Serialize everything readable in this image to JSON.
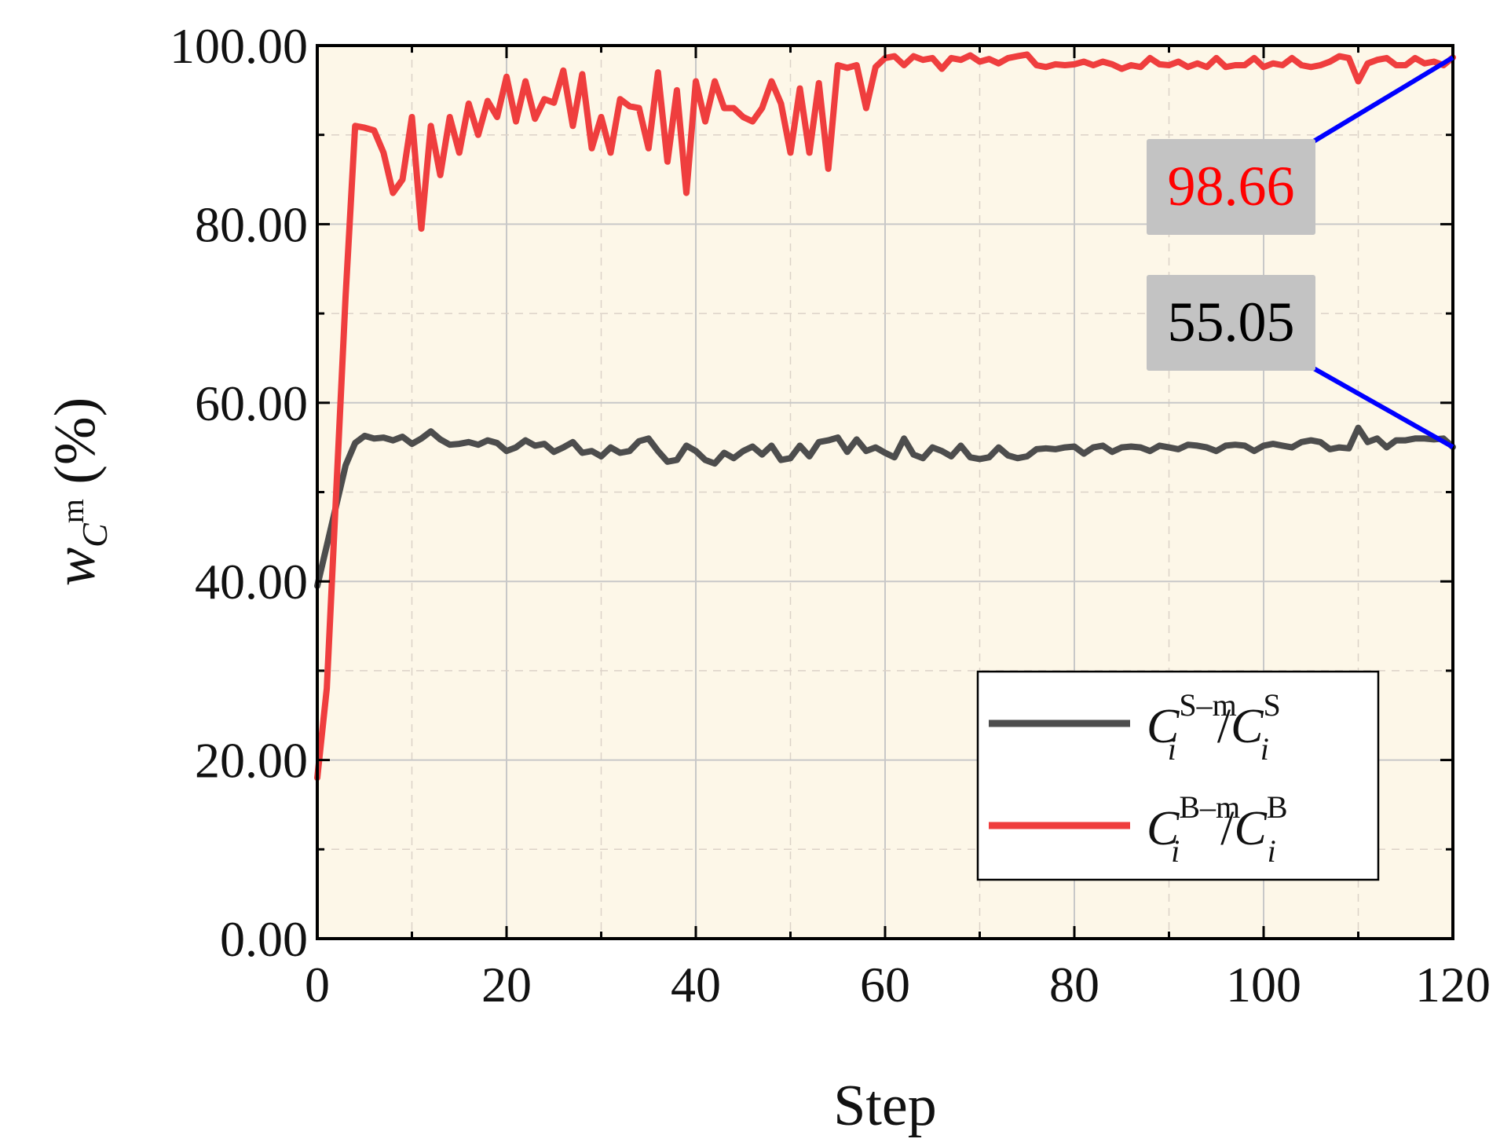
{
  "chart_data": {
    "type": "line",
    "title": "",
    "xlabel": "Step",
    "ylabel": "w_{C^m} (%)",
    "xlim": [
      0,
      120
    ],
    "ylim": [
      0,
      100
    ],
    "x_ticks": [
      "0",
      "20",
      "40",
      "60",
      "80",
      "100",
      "120"
    ],
    "y_ticks": [
      "0.00",
      "20.00",
      "40.00",
      "60.00",
      "80.00",
      "100.00"
    ],
    "grid": true,
    "background": "#fdf7e8",
    "legend_position": "lower-right",
    "series": [
      {
        "name": "C_i^{S_m}/C_i^S",
        "legend": {
          "base": "C",
          "sub": "i",
          "sup": "S_m",
          "slash": "/",
          "base2": "C",
          "sub2": "i",
          "sup2": "S"
        },
        "color": "#4d4d4d",
        "x": [
          0,
          1,
          2,
          3,
          4,
          5,
          6,
          7,
          8,
          9,
          10,
          11,
          12,
          13,
          14,
          15,
          16,
          17,
          18,
          19,
          20,
          21,
          22,
          23,
          24,
          25,
          26,
          27,
          28,
          29,
          30,
          31,
          32,
          33,
          34,
          35,
          36,
          37,
          38,
          39,
          40,
          41,
          42,
          43,
          44,
          45,
          46,
          47,
          48,
          49,
          50,
          51,
          52,
          53,
          54,
          55,
          56,
          57,
          58,
          59,
          60,
          61,
          62,
          63,
          64,
          65,
          66,
          67,
          68,
          69,
          70,
          71,
          72,
          73,
          74,
          75,
          76,
          77,
          78,
          79,
          80,
          81,
          82,
          83,
          84,
          85,
          86,
          87,
          88,
          89,
          90,
          91,
          92,
          93,
          94,
          95,
          96,
          97,
          98,
          99,
          100,
          101,
          102,
          103,
          104,
          105,
          106,
          107,
          108,
          109,
          110,
          111,
          112,
          113,
          114,
          115,
          116,
          117,
          118,
          119,
          120
        ],
        "y": [
          39.5,
          44.0,
          48.5,
          53.0,
          55.5,
          56.3,
          56.0,
          56.1,
          55.8,
          56.2,
          55.4,
          56.0,
          56.8,
          55.9,
          55.3,
          55.4,
          55.6,
          55.3,
          55.8,
          55.5,
          54.6,
          55.0,
          55.8,
          55.2,
          55.4,
          54.5,
          55.0,
          55.6,
          54.4,
          54.6,
          54.0,
          55.0,
          54.4,
          54.6,
          55.7,
          56.0,
          54.6,
          53.4,
          53.6,
          55.2,
          54.6,
          53.6,
          53.2,
          54.4,
          53.8,
          54.6,
          55.1,
          54.2,
          55.2,
          53.6,
          53.8,
          55.2,
          54.0,
          55.6,
          55.8,
          56.1,
          54.5,
          55.9,
          54.6,
          55.0,
          54.4,
          53.9,
          56.0,
          54.2,
          53.8,
          55.0,
          54.6,
          54.0,
          55.2,
          53.9,
          53.7,
          53.9,
          55.0,
          54.1,
          53.8,
          54.0,
          54.8,
          54.9,
          54.8,
          55.0,
          55.1,
          54.3,
          55.0,
          55.2,
          54.5,
          55.0,
          55.1,
          55.0,
          54.6,
          55.2,
          55.0,
          54.8,
          55.3,
          55.2,
          55.0,
          54.6,
          55.2,
          55.3,
          55.2,
          54.6,
          55.2,
          55.4,
          55.2,
          55.0,
          55.6,
          55.8,
          55.6,
          54.8,
          55.0,
          54.9,
          57.2,
          55.6,
          56.0,
          55.0,
          55.8,
          55.8,
          56.0,
          56.0,
          55.9,
          56.0,
          55.05
        ]
      },
      {
        "name": "C_i^{B_m}/C_i^B",
        "legend": {
          "base": "C",
          "sub": "i",
          "sup": "B_m",
          "slash": "/",
          "base2": "C",
          "sub2": "i",
          "sup2": "B"
        },
        "color": "#ef3e3e",
        "x": [
          0,
          1,
          2,
          3,
          4,
          5,
          6,
          7,
          8,
          9,
          10,
          11,
          12,
          13,
          14,
          15,
          16,
          17,
          18,
          19,
          20,
          21,
          22,
          23,
          24,
          25,
          26,
          27,
          28,
          29,
          30,
          31,
          32,
          33,
          34,
          35,
          36,
          37,
          38,
          39,
          40,
          41,
          42,
          43,
          44,
          45,
          46,
          47,
          48,
          49,
          50,
          51,
          52,
          53,
          54,
          55,
          56,
          57,
          58,
          59,
          60,
          61,
          62,
          63,
          64,
          65,
          66,
          67,
          68,
          69,
          70,
          71,
          72,
          73,
          74,
          75,
          76,
          77,
          78,
          79,
          80,
          81,
          82,
          83,
          84,
          85,
          86,
          87,
          88,
          89,
          90,
          91,
          92,
          93,
          94,
          95,
          96,
          97,
          98,
          99,
          100,
          101,
          102,
          103,
          104,
          105,
          106,
          107,
          108,
          109,
          110,
          111,
          112,
          113,
          114,
          115,
          116,
          117,
          118,
          119,
          120
        ],
        "y": [
          18.0,
          28.0,
          50.0,
          72.0,
          91.0,
          90.8,
          90.5,
          88.0,
          83.5,
          85.0,
          92.0,
          79.5,
          91.0,
          85.5,
          92.0,
          88.0,
          93.5,
          90.0,
          93.8,
          92.0,
          96.5,
          91.5,
          96.0,
          91.8,
          94.0,
          93.6,
          97.2,
          91.0,
          96.8,
          88.5,
          92.0,
          88.0,
          94.0,
          93.2,
          93.0,
          88.5,
          97.0,
          87.0,
          95.0,
          83.5,
          96.0,
          91.5,
          96.0,
          93.0,
          93.0,
          92.0,
          91.5,
          93.0,
          96.0,
          93.5,
          88.0,
          95.2,
          88.0,
          95.8,
          86.2,
          97.8,
          97.5,
          97.8,
          93.0,
          97.6,
          98.6,
          98.8,
          97.8,
          98.8,
          98.4,
          98.6,
          97.4,
          98.6,
          98.4,
          98.9,
          98.2,
          98.5,
          98.0,
          98.6,
          98.8,
          99.0,
          97.8,
          97.6,
          97.9,
          97.8,
          97.9,
          98.2,
          97.8,
          98.2,
          97.9,
          97.4,
          97.8,
          97.6,
          98.6,
          97.9,
          97.8,
          98.2,
          97.6,
          98.0,
          97.6,
          98.6,
          97.6,
          97.8,
          97.8,
          98.6,
          97.6,
          98.0,
          97.8,
          98.6,
          97.8,
          97.6,
          97.8,
          98.2,
          98.8,
          98.6,
          96.0,
          98.0,
          98.4,
          98.6,
          97.8,
          97.8,
          98.6,
          98.0,
          98.2,
          97.8,
          98.66
        ]
      }
    ],
    "annotations": [
      {
        "text": "98.66",
        "series": 1,
        "x": 120,
        "y": 98.66,
        "color": "#ff0000",
        "box_color": "#c3c3c3",
        "leader_color": "#0000ff"
      },
      {
        "text": "55.05",
        "series": 0,
        "x": 120,
        "y": 55.05,
        "color": "#000000",
        "box_color": "#c3c3c3",
        "leader_color": "#0000ff"
      }
    ]
  }
}
